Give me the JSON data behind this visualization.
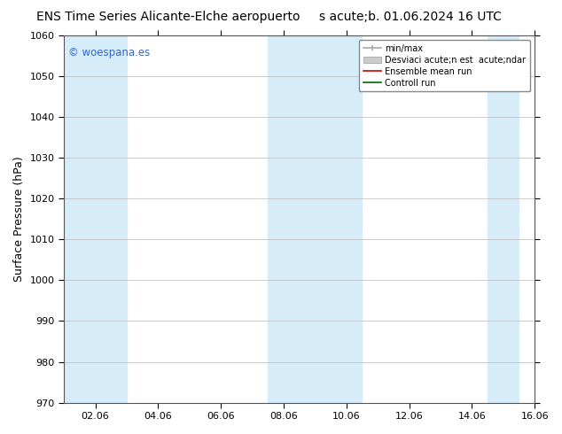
{
  "title_left": "ENS Time Series Alicante-Elche aeropuerto",
  "title_right": "s acute;b. 01.06.2024 16 UTC",
  "ylabel": "Surface Pressure (hPa)",
  "ylim": [
    970,
    1060
  ],
  "yticks": [
    970,
    980,
    990,
    1000,
    1010,
    1020,
    1030,
    1040,
    1050,
    1060
  ],
  "xtick_labels": [
    "02.06",
    "04.06",
    "06.06",
    "08.06",
    "10.06",
    "12.06",
    "14.06",
    "16.06"
  ],
  "xlim_days": [
    1.0,
    15.5
  ],
  "xtick_positions": [
    2,
    4,
    6,
    8,
    10,
    12,
    14,
    16
  ],
  "shaded_bands": [
    {
      "x_start": 1.0,
      "x_end": 3.0
    },
    {
      "x_start": 7.5,
      "x_end": 9.0
    },
    {
      "x_start": 9.0,
      "x_end": 10.5
    },
    {
      "x_start": 14.5,
      "x_end": 15.5
    }
  ],
  "band_color": "#d6ecf8",
  "watermark": "© woespana.es",
  "watermark_color": "#3366cc",
  "legend_label_minmax": "min/max",
  "legend_label_std": "Desviaci acute;n est  acute;ndar",
  "legend_label_ens": "Ensemble mean run",
  "legend_label_ctrl": "Controll run",
  "bg_color": "#ffffff",
  "title_fontsize": 10,
  "legend_fontsize": 7,
  "axis_label_fontsize": 9,
  "tick_fontsize": 8
}
